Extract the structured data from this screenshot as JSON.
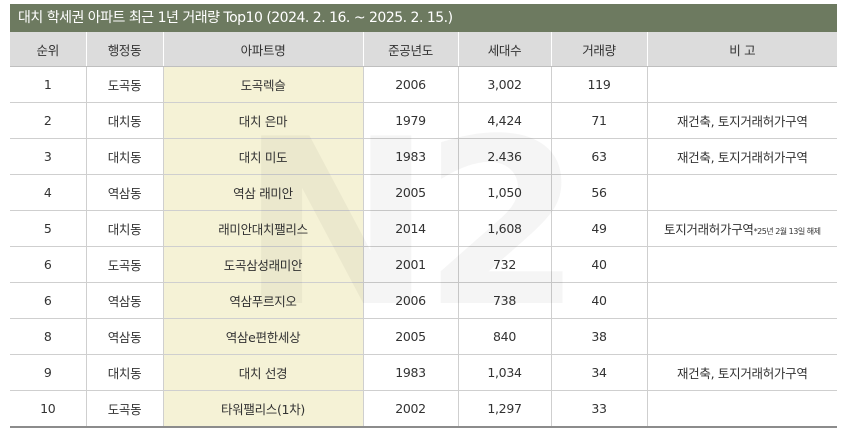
{
  "title": "대치 학세권 아파트 최근 1년 거래량 Top10 (2024. 2. 16. ~ 2025. 2. 15.)",
  "headers": [
    "순위",
    "행정동",
    "아파트명",
    "준공년도",
    "세대수",
    "거래량",
    "비 고"
  ],
  "rows": [
    {
      "rank": "1",
      "dong": "도곡동",
      "apt": "도곡렉슬",
      "year": "2006",
      "households": "3,002",
      "volume": "119",
      "note": "",
      "note_small": ""
    },
    {
      "rank": "2",
      "dong": "대치동",
      "apt": "대치 은마",
      "year": "1979",
      "households": "4,424",
      "volume": "71",
      "note": "재건축, 토지거래허가구역",
      "note_small": ""
    },
    {
      "rank": "3",
      "dong": "대치동",
      "apt": "대치 미도",
      "year": "1983",
      "households": "2.436",
      "volume": "63",
      "note": "재건축, 토지거래허가구역",
      "note_small": ""
    },
    {
      "rank": "4",
      "dong": "역삼동",
      "apt": "역삼 래미안",
      "year": "2005",
      "households": "1,050",
      "volume": "56",
      "note": "",
      "note_small": ""
    },
    {
      "rank": "5",
      "dong": "대치동",
      "apt": "래미안대치팰리스",
      "year": "2014",
      "households": "1,608",
      "volume": "49",
      "note": "토지거래허가구역",
      "note_small": "*25년 2월 13일 해제"
    },
    {
      "rank": "6",
      "dong": "도곡동",
      "apt": "도곡삼성래미안",
      "year": "2001",
      "households": "732",
      "volume": "40",
      "note": "",
      "note_small": ""
    },
    {
      "rank": "6",
      "dong": "역삼동",
      "apt": "역삼푸르지오",
      "year": "2006",
      "households": "738",
      "volume": "40",
      "note": "",
      "note_small": ""
    },
    {
      "rank": "8",
      "dong": "역삼동",
      "apt": "역삼e편한세상",
      "year": "2005",
      "households": "840",
      "volume": "38",
      "note": "",
      "note_small": ""
    },
    {
      "rank": "9",
      "dong": "대치동",
      "apt": "대치 선경",
      "year": "1983",
      "households": "1,034",
      "volume": "34",
      "note": "재건축, 토지거래허가구역",
      "note_small": ""
    },
    {
      "rank": "10",
      "dong": "도곡동",
      "apt": "타워팰리스(1차)",
      "year": "2002",
      "households": "1,297",
      "volume": "33",
      "note": "",
      "note_small": ""
    }
  ],
  "watermark": "N2",
  "colors": {
    "title_bg": "#6d7a60",
    "header_bg": "#dcdcdc",
    "apt_highlight": "#f5f2d6"
  }
}
